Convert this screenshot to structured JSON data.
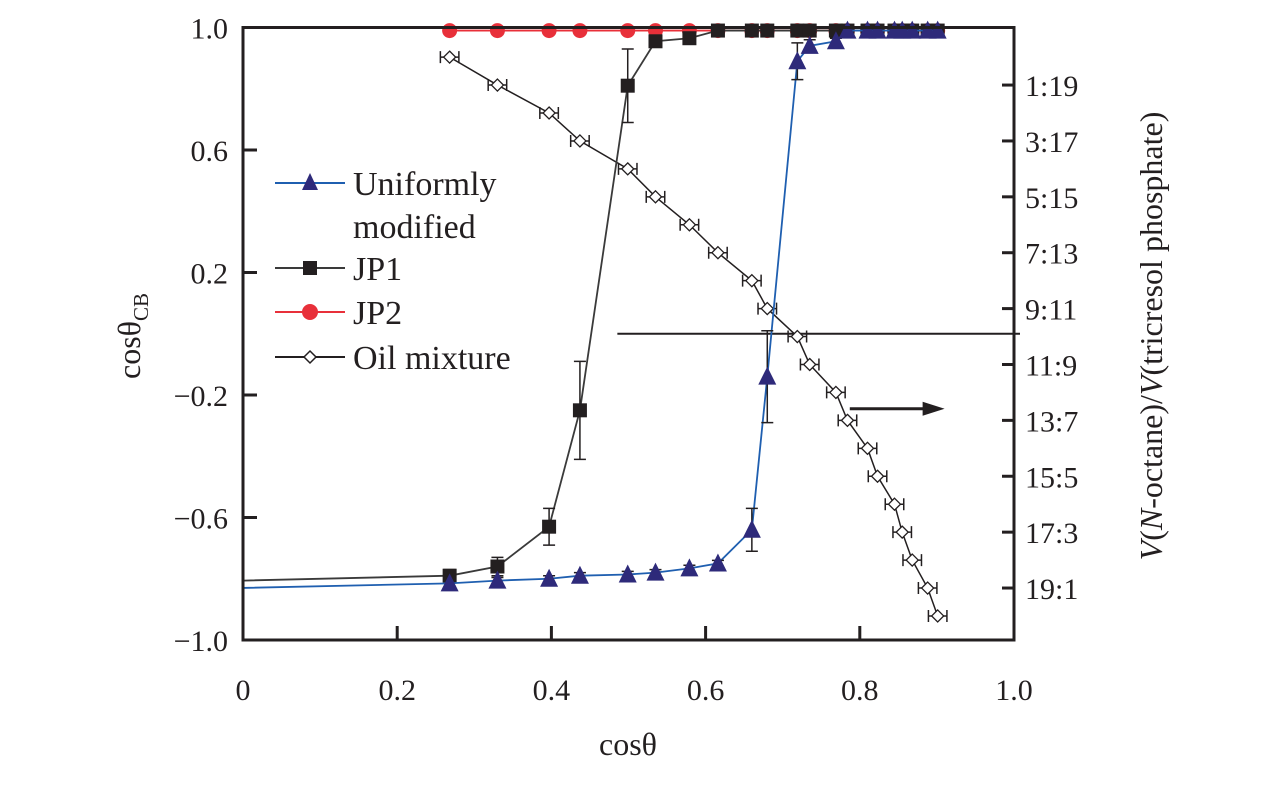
{
  "chart_data": {
    "type": "line",
    "xlabel": "cosθ",
    "ylabel": "cosθ",
    "ylabel_sub": "CB",
    "y2label": {
      "v1": "V",
      "p1": "(",
      "n": "N",
      "p2": "-octane)/",
      "v2": "V",
      "p3": "(tricresol phosphate)"
    },
    "xlim": [
      0,
      1.0
    ],
    "ylim": [
      -1.0,
      1.0
    ],
    "y2lim_octane_volume_inverted": [
      -1.06,
      20.86
    ],
    "xticks": [
      "0",
      "0.2",
      "0.4",
      "0.6",
      "0.8",
      "1.0"
    ],
    "xtick_values": [
      0,
      0.2,
      0.4,
      0.6,
      0.8,
      1.0
    ],
    "yticks": [
      "1.0",
      "0.6",
      "0.2",
      "−0.2",
      "−0.6",
      "−1.0"
    ],
    "ytick_values": [
      1.0,
      0.6,
      0.2,
      -0.2,
      -0.6,
      -1.0
    ],
    "y2ticks": [
      "1:19",
      "3:17",
      "5:15",
      "7:13",
      "9:11",
      "11:9",
      "13:7",
      "15:5",
      "17:3",
      "19:1"
    ],
    "y2tick_values": [
      1,
      3,
      5,
      7,
      9,
      11,
      13,
      15,
      17,
      19
    ],
    "x": [
      0.268,
      0.33,
      0.397,
      0.437,
      0.499,
      0.535,
      0.579,
      0.616,
      0.66,
      0.68,
      0.719,
      0.735,
      0.769,
      0.784,
      0.81,
      0.823,
      0.845,
      0.855,
      0.868,
      0.888,
      0.901
    ],
    "series": [
      {
        "name": "Uniformly",
        "name2": "modified",
        "color": "#1f5fb0",
        "marker": "triangle",
        "marker_color": "#2e2a7a",
        "start": [
          0,
          -0.83
        ],
        "values": [
          -0.815,
          -0.806,
          -0.8,
          -0.79,
          -0.786,
          -0.78,
          -0.766,
          -0.75,
          -0.64,
          -0.14,
          0.89,
          0.94,
          0.955,
          0.99,
          0.99,
          0.99,
          0.99,
          0.99,
          0.99,
          0.99,
          0.99
        ],
        "yerr": [
          0.01,
          0.01,
          0.01,
          0.01,
          0.01,
          0.01,
          0.01,
          0.01,
          0.07,
          0.15,
          0.06,
          0.02,
          0.01,
          0.01,
          0.01,
          0.01,
          0.01,
          0.01,
          0.01,
          0.01,
          0.01
        ]
      },
      {
        "name": "JP1",
        "color": "#3a3a3a",
        "marker": "square",
        "marker_color": "#231f20",
        "start": [
          0,
          -0.806
        ],
        "values": [
          -0.79,
          -0.76,
          -0.63,
          -0.25,
          0.81,
          0.955,
          0.965,
          0.99,
          0.99,
          0.99,
          0.99,
          0.99,
          0.99,
          0.99,
          0.99,
          0.99,
          0.99,
          0.99,
          0.99,
          0.99,
          0.99
        ],
        "yerr": [
          0.02,
          0.03,
          0.06,
          0.16,
          0.12,
          0.01,
          0.01,
          0.01,
          0.01,
          0.01,
          0.01,
          0.01,
          0.01,
          0.01,
          0.01,
          0.01,
          0.01,
          0.01,
          0.01,
          0.01,
          0.01
        ]
      },
      {
        "name": "JP2",
        "color": "#e8303a",
        "marker": "circle",
        "marker_color": "#e8303a",
        "values": [
          0.99,
          0.99,
          0.99,
          0.99,
          0.99,
          0.99,
          0.99,
          0.99,
          0.99,
          0.99,
          0.99,
          0.99,
          0.99,
          0.99,
          0.99,
          0.99,
          0.99,
          0.99,
          0.99,
          0.99,
          0.99
        ],
        "yerr": [
          0.01,
          0.01,
          0.01,
          0.01,
          0.01,
          0.01,
          0.01,
          0.01,
          0.01,
          0.01,
          0.01,
          0.01,
          0.01,
          0.01,
          0.01,
          0.01,
          0.01,
          0.01,
          0.01,
          0.01,
          0.01
        ]
      },
      {
        "name": "Oil mixture",
        "color": "#231f20",
        "marker": "diamond-open",
        "axis": "right",
        "octane_volume": [
          0,
          1,
          2,
          3,
          4,
          5,
          6,
          7,
          8,
          9,
          10,
          11,
          12,
          13,
          14,
          15,
          16,
          17,
          18,
          19,
          20
        ],
        "xerr": 0.012
      }
    ],
    "reference_line_y": 0,
    "reference_line_x": [
      0.243,
      1.0
    ],
    "arrow": {
      "from": [
        0.787,
        -0.245
      ],
      "to": [
        0.91,
        -0.245
      ],
      "direction": "right"
    },
    "legend_placement": "left"
  }
}
